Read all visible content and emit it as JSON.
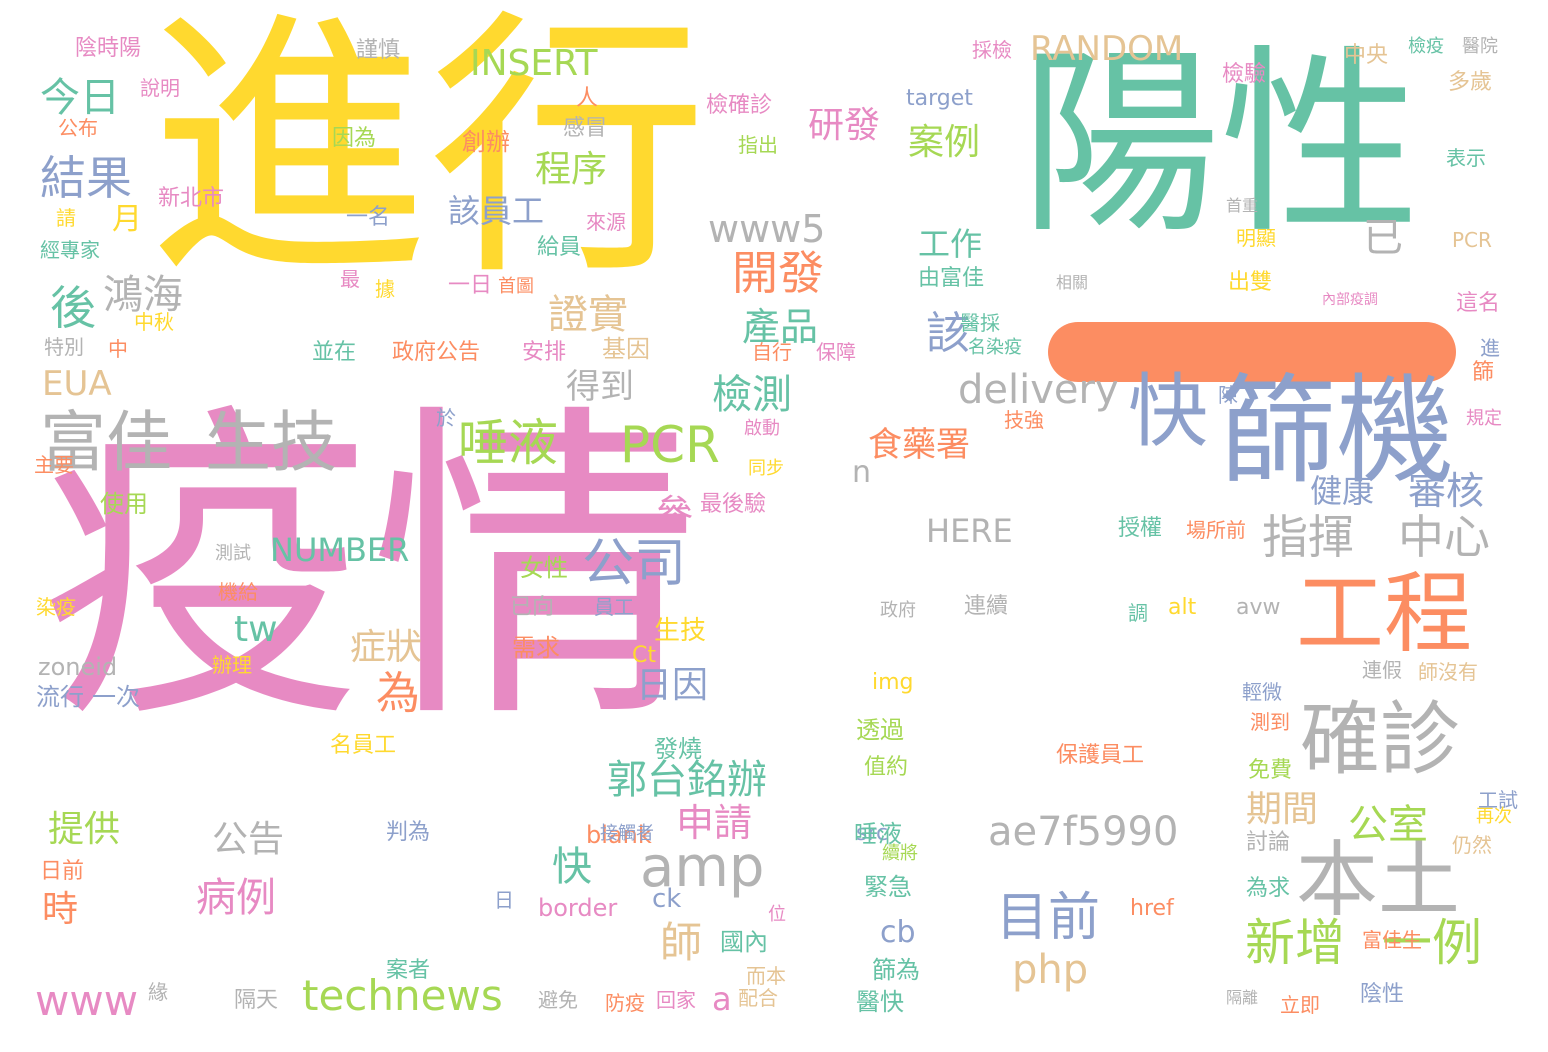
{
  "palette": {
    "yellow": "#ffd92f",
    "pink": "#e78ac3",
    "teal": "#66c2a5",
    "orange": "#fc8d62",
    "blue": "#8da0cb",
    "green": "#a6d854",
    "tan": "#e5c494",
    "gray": "#b3b3b3",
    "background": "#ffffff"
  },
  "words": [
    {
      "text": "進行",
      "color": "yellow",
      "vertical": false
    },
    {
      "text": "疫情",
      "color": "pink",
      "vertical": false
    },
    {
      "text": "陽性",
      "color": "teal",
      "vertical": false
    },
    {
      "text": "快",
      "color": "blue",
      "vertical": false
    },
    {
      "text": "篩機",
      "color": "blue",
      "vertical": false
    },
    {
      "text": "工程",
      "color": "orange",
      "vertical": false
    },
    {
      "text": "確診",
      "color": "gray",
      "vertical": false
    },
    {
      "text": "本土",
      "color": "gray",
      "vertical": false
    },
    {
      "text": "富佳",
      "color": "gray",
      "vertical": false
    },
    {
      "text": "生技",
      "color": "gray",
      "vertical": false
    },
    {
      "text": "唾液",
      "color": "green",
      "vertical": false
    },
    {
      "text": "PCR",
      "color": "green",
      "vertical": false
    },
    {
      "text": "指揮",
      "color": "gray",
      "vertical": false
    },
    {
      "text": "中心",
      "color": "gray",
      "vertical": false
    },
    {
      "text": "新增",
      "color": "green",
      "vertical": false
    },
    {
      "text": "一例",
      "color": "green",
      "vertical": false
    },
    {
      "text": "目前",
      "color": "blue",
      "vertical": false
    },
    {
      "text": "amp",
      "color": "gray",
      "vertical": false
    },
    {
      "text": "technews",
      "color": "green",
      "vertical": false
    },
    {
      "text": "www",
      "color": "pink",
      "vertical": false
    },
    {
      "text": "a",
      "color": "pink",
      "vertical": false
    },
    {
      "text": "php",
      "color": "tan",
      "vertical": false
    },
    {
      "text": "公司",
      "color": "blue",
      "vertical": false
    },
    {
      "text": "郭台銘辦",
      "color": "teal",
      "vertical": false
    },
    {
      "text": "申請",
      "color": "pink",
      "vertical": false
    },
    {
      "text": "公室",
      "color": "green",
      "vertical": false
    },
    {
      "text": "ae7f5990",
      "color": "gray",
      "vertical": false
    },
    {
      "text": "delivery",
      "color": "gray",
      "vertical": false
    },
    {
      "text": "www5",
      "color": "gray",
      "vertical": false
    },
    {
      "text": "開發",
      "color": "orange",
      "vertical": false
    },
    {
      "text": "產品",
      "color": "teal",
      "vertical": false
    },
    {
      "text": "證實",
      "color": "tan",
      "vertical": false
    },
    {
      "text": "研發",
      "color": "pink",
      "vertical": false
    },
    {
      "text": "案例",
      "color": "green",
      "vertical": false
    },
    {
      "text": "程序",
      "color": "green",
      "vertical": false
    },
    {
      "text": "該員工",
      "color": "blue",
      "vertical": false
    },
    {
      "text": "結果",
      "color": "blue",
      "vertical": false
    },
    {
      "text": "今日",
      "color": "teal",
      "vertical": false
    },
    {
      "text": "後",
      "color": "teal",
      "vertical": false
    },
    {
      "text": "鴻海",
      "color": "gray",
      "vertical": false
    },
    {
      "text": "EUA",
      "color": "tan",
      "vertical": false
    },
    {
      "text": "得到",
      "color": "gray",
      "vertical": false
    },
    {
      "text": "檢測",
      "color": "teal",
      "vertical": false
    },
    {
      "text": "食藥署",
      "color": "orange",
      "vertical": false
    },
    {
      "text": "該",
      "color": "blue",
      "vertical": false
    },
    {
      "text": "工作",
      "color": "teal",
      "vertical": false
    },
    {
      "text": "已",
      "color": "gray",
      "vertical": false
    },
    {
      "text": "審核",
      "color": "blue",
      "vertical": false
    },
    {
      "text": "健康",
      "color": "blue",
      "vertical": false
    },
    {
      "text": "RANDOM",
      "color": "tan",
      "vertical": false
    },
    {
      "text": "INSERT",
      "color": "green",
      "vertical": false
    },
    {
      "text": "NUMBER",
      "color": "teal",
      "vertical": false
    },
    {
      "text": "HERE",
      "color": "gray",
      "vertical": false
    },
    {
      "text": "n",
      "color": "gray",
      "vertical": false
    },
    {
      "text": "tw",
      "color": "teal",
      "vertical": false
    },
    {
      "text": "為",
      "color": "orange",
      "vertical": false
    },
    {
      "text": "症狀",
      "color": "tan",
      "vertical": false
    },
    {
      "text": "日因",
      "color": "blue",
      "vertical": false
    },
    {
      "text": "參",
      "color": "pink",
      "vertical": false
    },
    {
      "text": "師",
      "color": "tan",
      "vertical": false
    },
    {
      "text": "快",
      "color": "teal",
      "vertical": false
    },
    {
      "text": "病例",
      "color": "pink",
      "vertical": false
    },
    {
      "text": "公告",
      "color": "gray",
      "vertical": false
    },
    {
      "text": "cb",
      "color": "blue",
      "vertical": false
    },
    {
      "text": "期間",
      "color": "tan",
      "vertical": false
    },
    {
      "text": "提供",
      "color": "green",
      "vertical": false
    },
    {
      "text": "時",
      "color": "orange",
      "vertical": false
    },
    {
      "text": "月",
      "color": "yellow",
      "vertical": false
    },
    {
      "text": "陰時陽",
      "color": "pink",
      "vertical": false
    },
    {
      "text": "說明",
      "color": "pink",
      "vertical": false
    },
    {
      "text": "公布",
      "color": "orange",
      "vertical": false
    },
    {
      "text": "因為",
      "color": "green",
      "vertical": false
    },
    {
      "text": "新北市",
      "color": "pink",
      "vertical": false
    },
    {
      "text": "請",
      "color": "yellow",
      "vertical": false
    },
    {
      "text": "經專家",
      "color": "teal",
      "vertical": false
    },
    {
      "text": "特別",
      "color": "gray",
      "vertical": false
    },
    {
      "text": "中秋",
      "color": "yellow",
      "vertical": false
    },
    {
      "text": "中",
      "color": "orange",
      "vertical": false
    },
    {
      "text": "主要",
      "color": "orange",
      "vertical": false
    },
    {
      "text": "使用",
      "color": "green",
      "vertical": false
    },
    {
      "text": "染疫",
      "color": "yellow",
      "vertical": false
    },
    {
      "text": "測試",
      "color": "gray",
      "vertical": false
    },
    {
      "text": "機給",
      "color": "orange",
      "vertical": false
    },
    {
      "text": "zoneid",
      "color": "gray",
      "vertical": false
    },
    {
      "text": "流行",
      "color": "blue",
      "vertical": false
    },
    {
      "text": "一次",
      "color": "blue",
      "vertical": false
    },
    {
      "text": "日前",
      "color": "orange",
      "vertical": false
    },
    {
      "text": "緣",
      "color": "gray",
      "vertical": false
    },
    {
      "text": "謹慎",
      "color": "gray",
      "vertical": false
    },
    {
      "text": "人",
      "color": "orange",
      "vertical": false
    },
    {
      "text": "創辦",
      "color": "orange",
      "vertical": false
    },
    {
      "text": "感冒",
      "color": "gray",
      "vertical": false
    },
    {
      "text": "一名",
      "color": "blue",
      "vertical": false
    },
    {
      "text": "來源",
      "color": "pink",
      "vertical": false
    },
    {
      "text": "給員",
      "color": "teal",
      "vertical": false
    },
    {
      "text": "最",
      "color": "pink",
      "vertical": false
    },
    {
      "text": "據",
      "color": "yellow",
      "vertical": false
    },
    {
      "text": "一日",
      "color": "pink",
      "vertical": false
    },
    {
      "text": "首圖",
      "color": "orange",
      "vertical": false
    },
    {
      "text": "並在",
      "color": "teal",
      "vertical": false
    },
    {
      "text": "政府公告",
      "color": "orange",
      "vertical": false
    },
    {
      "text": "安排",
      "color": "pink",
      "vertical": false
    },
    {
      "text": "基因",
      "color": "tan",
      "vertical": false
    },
    {
      "text": "於",
      "color": "blue",
      "vertical": false
    },
    {
      "text": "女性",
      "color": "green",
      "vertical": false
    },
    {
      "text": "已向",
      "color": "gray",
      "vertical": false
    },
    {
      "text": "員工",
      "color": "blue",
      "vertical": false
    },
    {
      "text": "生技",
      "color": "yellow",
      "vertical": false
    },
    {
      "text": "需求",
      "color": "orange",
      "vertical": false
    },
    {
      "text": "Ct",
      "color": "yellow",
      "vertical": false
    },
    {
      "text": "辦理",
      "color": "yellow",
      "vertical": false
    },
    {
      "text": "名員工",
      "color": "yellow",
      "vertical": false
    },
    {
      "text": "發燒",
      "color": "teal",
      "vertical": false
    },
    {
      "text": "判為",
      "color": "blue",
      "vertical": false
    },
    {
      "text": "日",
      "color": "blue",
      "vertical": false
    },
    {
      "text": "border",
      "color": "pink",
      "vertical": false
    },
    {
      "text": "ck",
      "color": "blue",
      "vertical": false
    },
    {
      "text": "blank",
      "color": "orange",
      "vertical": false
    },
    {
      "text": "src",
      "color": "blue",
      "vertical": false
    },
    {
      "text": "隔天",
      "color": "gray",
      "vertical": false
    },
    {
      "text": "避免",
      "color": "gray",
      "vertical": false
    },
    {
      "text": "防疫",
      "color": "orange",
      "vertical": false
    },
    {
      "text": "回家",
      "color": "pink",
      "vertical": false
    },
    {
      "text": "配合",
      "color": "tan",
      "vertical": false
    },
    {
      "text": "而本",
      "color": "tan",
      "vertical": false
    },
    {
      "text": "位",
      "color": "pink",
      "vertical": false
    },
    {
      "text": "國內",
      "color": "teal",
      "vertical": false
    },
    {
      "text": "案者",
      "color": "teal",
      "vertical": false
    },
    {
      "text": "篩為",
      "color": "teal",
      "vertical": false
    },
    {
      "text": "醫快",
      "color": "teal",
      "vertical": false
    },
    {
      "text": "緊急",
      "color": "teal",
      "vertical": false
    },
    {
      "text": "唾液",
      "color": "teal",
      "vertical": false
    },
    {
      "text": "值約",
      "color": "green",
      "vertical": false
    },
    {
      "text": "透過",
      "color": "green",
      "vertical": false
    },
    {
      "text": "img",
      "color": "yellow",
      "vertical": false
    },
    {
      "text": "接觸者",
      "color": "blue",
      "vertical": false
    },
    {
      "text": "續將",
      "color": "green",
      "vertical": false
    },
    {
      "text": "最後驗",
      "color": "pink",
      "vertical": false
    },
    {
      "text": "同步",
      "color": "yellow",
      "vertical": false
    },
    {
      "text": "啟動",
      "color": "pink",
      "vertical": false
    },
    {
      "text": "自行",
      "color": "orange",
      "vertical": false
    },
    {
      "text": "保障",
      "color": "pink",
      "vertical": false
    },
    {
      "text": "醫採",
      "color": "teal",
      "vertical": false
    },
    {
      "text": "名染疫",
      "color": "teal",
      "vertical": false
    },
    {
      "text": "授權",
      "color": "teal",
      "vertical": false
    },
    {
      "text": "場所前",
      "color": "orange",
      "vertical": false
    },
    {
      "text": "技強",
      "color": "orange",
      "vertical": false
    },
    {
      "text": "陳",
      "color": "blue",
      "vertical": false
    },
    {
      "text": "政府",
      "color": "gray",
      "vertical": false
    },
    {
      "text": "連續",
      "color": "gray",
      "vertical": false
    },
    {
      "text": "alt",
      "color": "yellow",
      "vertical": false
    },
    {
      "text": "avw",
      "color": "gray",
      "vertical": false
    },
    {
      "text": "調",
      "color": "teal",
      "vertical": false
    },
    {
      "text": "連假",
      "color": "gray",
      "vertical": false
    },
    {
      "text": "保護員工",
      "color": "orange",
      "vertical": false
    },
    {
      "text": "href",
      "color": "orange",
      "vertical": false
    },
    {
      "text": "隔離",
      "color": "gray",
      "vertical": false
    },
    {
      "text": "採檢",
      "color": "pink",
      "vertical": false
    },
    {
      "text": "檢驗",
      "color": "pink",
      "vertical": false
    },
    {
      "text": "中央",
      "color": "tan",
      "vertical": false
    },
    {
      "text": "檢疫",
      "color": "teal",
      "vertical": false
    },
    {
      "text": "醫院",
      "color": "gray",
      "vertical": false
    },
    {
      "text": "檢確診",
      "color": "pink",
      "vertical": false
    },
    {
      "text": "target",
      "color": "blue",
      "vertical": false
    },
    {
      "text": "指出",
      "color": "green",
      "vertical": false
    },
    {
      "text": "多歲",
      "color": "tan",
      "vertical": false
    },
    {
      "text": "表示",
      "color": "teal",
      "vertical": false
    },
    {
      "text": "首重",
      "color": "gray",
      "vertical": false
    },
    {
      "text": "明顯",
      "color": "yellow",
      "vertical": false
    },
    {
      "text": "PCR",
      "color": "tan",
      "vertical": false
    },
    {
      "text": "由富佳",
      "color": "teal",
      "vertical": false
    },
    {
      "text": "相關",
      "color": "gray",
      "vertical": false
    },
    {
      "text": "出雙",
      "color": "yellow",
      "vertical": false
    },
    {
      "text": "內部疫調",
      "color": "pink",
      "vertical": false
    },
    {
      "text": "這名",
      "color": "pink",
      "vertical": false
    },
    {
      "text": "進",
      "color": "blue",
      "vertical": false
    },
    {
      "text": "篩",
      "color": "orange",
      "vertical": false
    },
    {
      "text": "規定",
      "color": "pink",
      "vertical": false
    },
    {
      "text": "師沒有",
      "color": "tan",
      "vertical": false
    },
    {
      "text": "輕微",
      "color": "blue",
      "vertical": false
    },
    {
      "text": "測到",
      "color": "orange",
      "vertical": false
    },
    {
      "text": "免費",
      "color": "green",
      "vertical": false
    },
    {
      "text": "工試",
      "color": "blue",
      "vertical": false
    },
    {
      "text": "再次",
      "color": "yellow",
      "vertical": false
    },
    {
      "text": "討論",
      "color": "gray",
      "vertical": false
    },
    {
      "text": "仍然",
      "color": "tan",
      "vertical": false
    },
    {
      "text": "為求",
      "color": "teal",
      "vertical": false
    },
    {
      "text": "富佳生",
      "color": "orange",
      "vertical": false
    },
    {
      "text": "立即",
      "color": "orange",
      "vertical": false
    },
    {
      "text": "陰性",
      "color": "blue",
      "vertical": false
    }
  ]
}
